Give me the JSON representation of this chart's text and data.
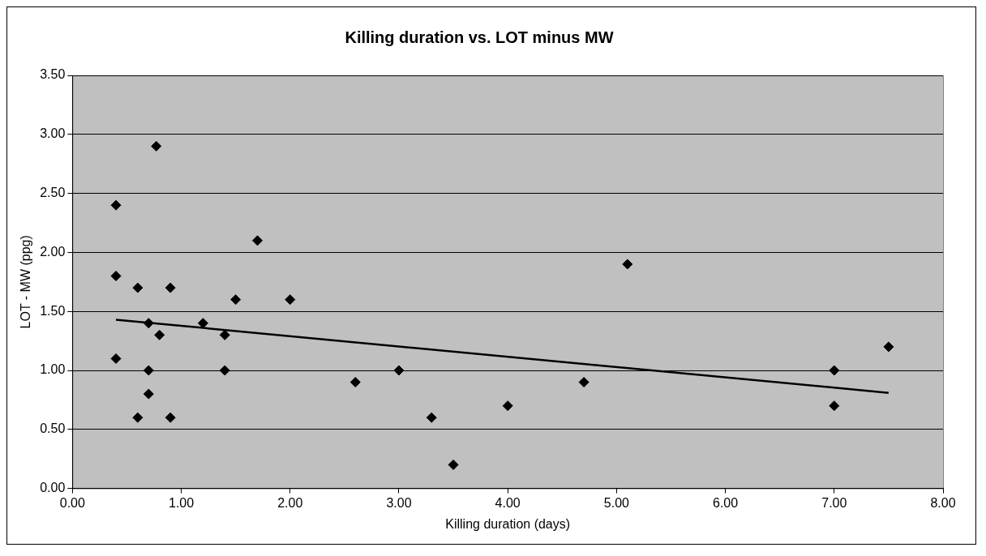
{
  "chart_data": {
    "type": "scatter",
    "title": "Killing duration vs. LOT minus MW",
    "xlabel": "Killing duration (days)",
    "ylabel": "LOT - MW (ppg)",
    "xlim": [
      0,
      8
    ],
    "xticks": [
      {
        "value": 0,
        "label": "0.00"
      },
      {
        "value": 1,
        "label": "1.00"
      },
      {
        "value": 2,
        "label": "2.00"
      },
      {
        "value": 3,
        "label": "3.00"
      },
      {
        "value": 4,
        "label": "4.00"
      },
      {
        "value": 5,
        "label": "5.00"
      },
      {
        "value": 6,
        "label": "6.00"
      },
      {
        "value": 7,
        "label": "7.00"
      },
      {
        "value": 8,
        "label": "8.00"
      }
    ],
    "ylim": [
      0,
      3.5
    ],
    "yticks": [
      {
        "value": 0,
        "label": "0.00"
      },
      {
        "value": 0.5,
        "label": "0.50"
      },
      {
        "value": 1,
        "label": "1.00"
      },
      {
        "value": 1.5,
        "label": "1.50"
      },
      {
        "value": 2,
        "label": "2.00"
      },
      {
        "value": 2.5,
        "label": "2.50"
      },
      {
        "value": 3,
        "label": "3.00"
      },
      {
        "value": 3.5,
        "label": "3.50"
      }
    ],
    "grid": "y",
    "legend": false,
    "marker": "diamond",
    "series": [
      {
        "color": "#000000",
        "x": [
          0.4,
          0.4,
          0.4,
          0.6,
          0.6,
          0.7,
          0.7,
          0.7,
          0.77,
          0.8,
          0.9,
          0.9,
          1.2,
          1.4,
          1.4,
          1.5,
          1.7,
          2.0,
          2.6,
          3.0,
          3.3,
          3.5,
          4.0,
          4.7,
          5.1,
          7.0,
          7.0,
          7.5
        ],
        "values": [
          2.4,
          1.8,
          1.1,
          1.7,
          0.6,
          1.4,
          1.0,
          0.8,
          2.9,
          1.3,
          1.7,
          0.6,
          1.4,
          1.3,
          1.0,
          1.6,
          2.1,
          1.6,
          0.9,
          1.0,
          0.6,
          0.2,
          0.7,
          0.9,
          1.9,
          1.0,
          0.7,
          1.2
        ]
      },
      {
        "type": "line",
        "marker": "none",
        "color": "#000000",
        "x": [
          0.4,
          7.5
        ],
        "values": [
          1.43,
          0.81
        ]
      }
    ]
  }
}
